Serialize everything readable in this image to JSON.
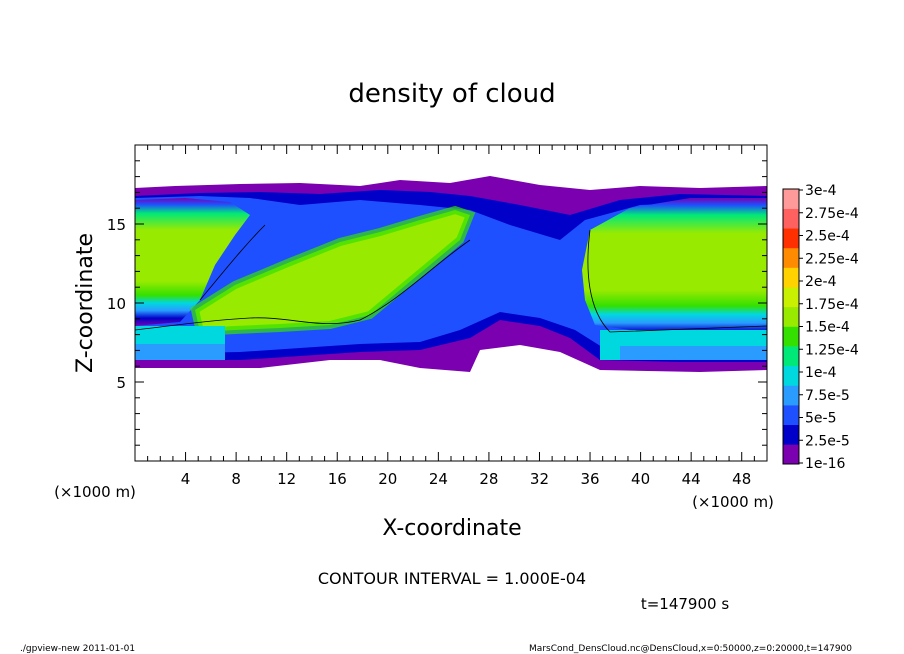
{
  "chart_data": {
    "type": "heatmap",
    "title": "density of cloud",
    "xlabel": "X-coordinate",
    "ylabel": "Z-coordinate",
    "x_unit": "(×1000 m)",
    "y_unit": "(×1000 m)",
    "xlim": [
      0,
      50
    ],
    "ylim": [
      0,
      20
    ],
    "x_ticks": [
      "4",
      "8",
      "12",
      "16",
      "20",
      "24",
      "28",
      "32",
      "36",
      "40",
      "44",
      "48"
    ],
    "y_ticks": [
      "5",
      "10",
      "15"
    ],
    "colorbar": {
      "labels": [
        "1e-16",
        "2.5e-5",
        "5e-5",
        "7.5e-5",
        "1e-4",
        "1.25e-4",
        "1.5e-4",
        "1.75e-4",
        "2e-4",
        "2.25e-4",
        "2.5e-4",
        "2.75e-4",
        "3e-4"
      ],
      "colors": [
        "#7a00b0",
        "#0000c8",
        "#1e50ff",
        "#2a9bff",
        "#00d8e0",
        "#00e878",
        "#34e000",
        "#98ea00",
        "#c8f000",
        "#ffd200",
        "#ff8c00",
        "#ff3000",
        "#ff6060",
        "#ff9a9a"
      ]
    },
    "contour_interval": "CONTOUR INTERVAL = 1.000E-04",
    "time": "t=147900 s"
  },
  "footer": {
    "left": "./gpview-new   2011-01-01",
    "right": "MarsCond_DensCloud.nc@DensCloud,x=0:50000,z=0:20000,t=147900"
  }
}
